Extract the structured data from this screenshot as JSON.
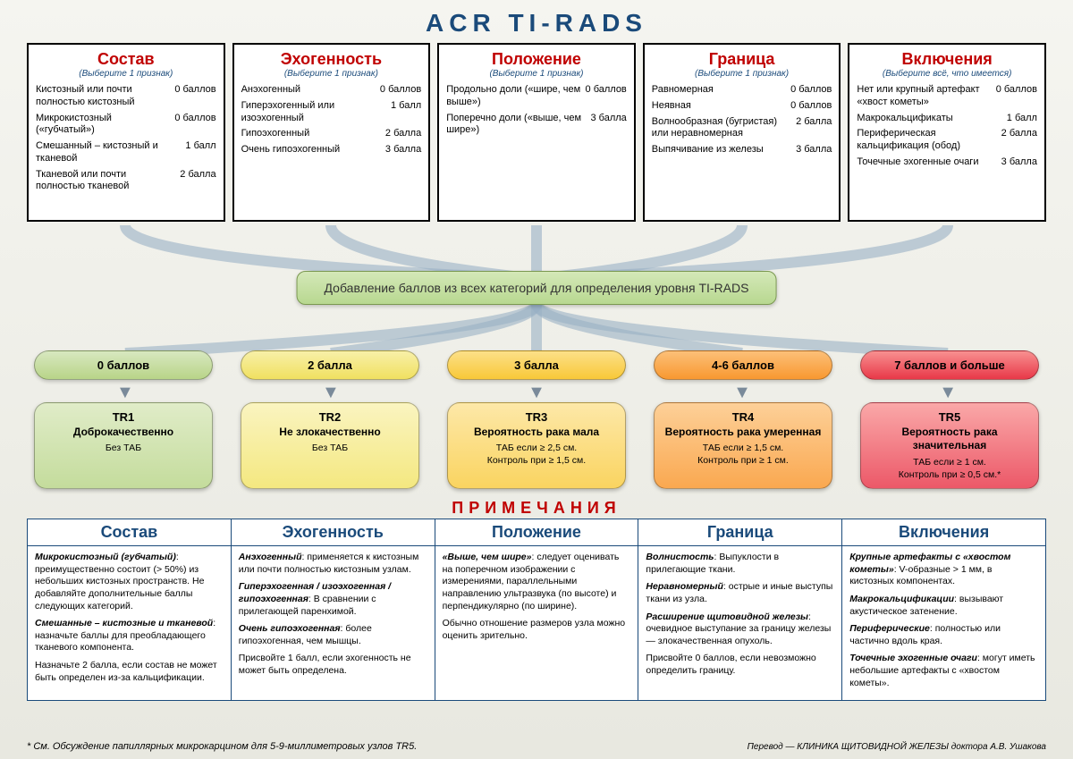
{
  "title": "ACR TI-RADS",
  "select_one": "(Выберите 1 признак)",
  "select_all": "(Выберите всё, что имеется)",
  "categories": [
    {
      "title": "Состав",
      "sub_key": "select_one",
      "items": [
        {
          "label": "Кистозный или почти полностью кистозный",
          "score": "0 баллов"
        },
        {
          "label": "Микрокистозный («губчатый»)",
          "score": "0 баллов"
        },
        {
          "label": "Смешанный – кистозный и тканевой",
          "score": "1 балл"
        },
        {
          "label": "Тканевой или почти полностью тканевой",
          "score": "2 балла"
        }
      ]
    },
    {
      "title": "Эхогенность",
      "sub_key": "select_one",
      "items": [
        {
          "label": "Анэхогенный",
          "score": "0 баллов"
        },
        {
          "label": "Гиперэхогенный или изоэхогенный",
          "score": "1 балл"
        },
        {
          "label": "Гипоэхогенный",
          "score": "2 балла"
        },
        {
          "label": "Очень гипоэхогенный",
          "score": "3 балла"
        }
      ]
    },
    {
      "title": "Положение",
      "sub_key": "select_one",
      "items": [
        {
          "label": "Продольно доли («шире, чем выше»)",
          "score": "0 баллов"
        },
        {
          "label": "Поперечно доли («выше, чем шире»)",
          "score": "3 балла"
        }
      ]
    },
    {
      "title": "Граница",
      "sub_key": "select_one",
      "items": [
        {
          "label": "Равномерная",
          "score": "0 баллов"
        },
        {
          "label": "Неявная",
          "score": "0 баллов"
        },
        {
          "label": "Волнообразная (бугристая) или неравномерная",
          "score": "2 балла"
        },
        {
          "label": "Выпячивание из железы",
          "score": "3 балла"
        }
      ]
    },
    {
      "title": "Включения",
      "sub_key": "select_all",
      "items": [
        {
          "label": "Нет или крупный артефакт «хвост кометы»",
          "score": "0 баллов"
        },
        {
          "label": "Макрокальцификаты",
          "score": "1 балл"
        },
        {
          "label": "Периферическая кальцификация (обод)",
          "score": "2 балла"
        },
        {
          "label": "Точечные эхогенные очаги",
          "score": "3 балла"
        }
      ]
    }
  ],
  "combine_text": "Добавление баллов из всех категорий для определения уровня TI-RADS",
  "scores": [
    {
      "label": "0 баллов",
      "bg": "linear-gradient(180deg,#d8e8c0,#b8d488)",
      "bg2": "linear-gradient(180deg,#e0ecc8,#c4dc9c)"
    },
    {
      "label": "2 балла",
      "bg": "linear-gradient(180deg,#f8f0a8,#f0e060)",
      "bg2": "linear-gradient(180deg,#faf4c0,#f4e880)"
    },
    {
      "label": "3 балла",
      "bg": "linear-gradient(180deg,#fce088,#f8c838)",
      "bg2": "linear-gradient(180deg,#fde8a8,#fad460)"
    },
    {
      "label": "4-6 баллов",
      "bg": "linear-gradient(180deg,#fcc078,#f89830)",
      "bg2": "linear-gradient(180deg,#fdd098,#faa850)"
    },
    {
      "label": "7 баллов и больше",
      "bg": "linear-gradient(180deg,#f89090,#e83848)",
      "bg2": "linear-gradient(180deg,#faa8a8,#ec5868)"
    }
  ],
  "tr": [
    {
      "code": "TR1",
      "label": "Доброкачественно",
      "action": "Без ТАБ"
    },
    {
      "code": "TR2",
      "label": "Не злокачественно",
      "action": "Без ТАБ"
    },
    {
      "code": "TR3",
      "label": "Вероятность рака мала",
      "action": "ТАБ если ≥ 2,5 см.\nКонтроль при ≥ 1,5 см."
    },
    {
      "code": "TR4",
      "label": "Вероятность рака умеренная",
      "action": "ТАБ если ≥ 1,5 см.\nКонтроль при  ≥ 1 см."
    },
    {
      "code": "TR5",
      "label": "Вероятность рака значительная",
      "action": "ТАБ если ≥ 1 см.\nКонтроль при ≥ 0,5 см.*"
    }
  ],
  "notes_title": "ПРИМЕЧАНИЯ",
  "notes_headers": [
    "Состав",
    "Эхогенность",
    "Положение",
    "Граница",
    "Включения"
  ],
  "notes": [
    [
      {
        "b": "Микрокистозный (губчатый)",
        "t": ": преимущественно состоит (> 50%) из небольших кистозных пространств. Не добавляйте дополнительные баллы следующих категорий."
      },
      {
        "b": "Смешанные – кистозные и тканевой",
        "t": ": назначьте баллы для преобладающего тканевого компонента."
      },
      {
        "b": "",
        "t": "Назначьте 2 балла, если состав не может быть определен из-за кальцификации."
      }
    ],
    [
      {
        "b": "Анэхогенный",
        "t": ": применяется к кистозным или почти полностью кистозным узлам."
      },
      {
        "b": "Гиперэхогенная / изоэхогенная / гипоэхогенная",
        "t": ": В сравнении с прилегающей паренхимой."
      },
      {
        "b": "Очень гипоэхогенная",
        "t": ": более гипоэхогенная, чем мышцы."
      },
      {
        "b": "",
        "t": "Присвойте 1 балл, если эхогенность не может быть определена."
      }
    ],
    [
      {
        "b": "«Выше, чем шире»",
        "t": ": следует оценивать на поперечном изображении с измерениями, параллельными направлению ультразвука (по высоте) и перпендикулярно (по ширине)."
      },
      {
        "b": "",
        "t": "Обычно отношение размеров узла можно оценить зрительно."
      }
    ],
    [
      {
        "b": "Волнистость",
        "t": ": Выпуклости в прилегающие ткани."
      },
      {
        "b": "Неравномерный",
        "t": ": острые и иные выступы ткани из узла."
      },
      {
        "b": "Расширение щитовидной железы",
        "t": ": очевидное выступание за границу железы — злокачественная опухоль."
      },
      {
        "b": "",
        "t": "Присвойте 0 баллов, если невозможно определить границу."
      }
    ],
    [
      {
        "b": "Крупные артефакты с «хвостом кометы»",
        "t": ": V-образные > 1 мм, в кистозных компонентах."
      },
      {
        "b": "Макрокальцификации",
        "t": ": вызывают акустическое затенение."
      },
      {
        "b": "Периферические",
        "t": ": полностью или частично вдоль края."
      },
      {
        "b": "Точечные эхогенные очаги",
        "t": ": могут иметь небольшие артефакты с «хвостом кометы»."
      }
    ]
  ],
  "footnote": "* См. Обсуждение папиллярных микрокарцином для 5-9-миллиметровых узлов TR5.",
  "credit": "Перевод — КЛИНИКА ЩИТОВИДНОЙ ЖЕЛЕЗЫ доктора А.В. Ушакова",
  "colors": {
    "flow_stroke": "#9ab0c4",
    "title_color": "#1a4a7a",
    "red": "#c00000"
  }
}
